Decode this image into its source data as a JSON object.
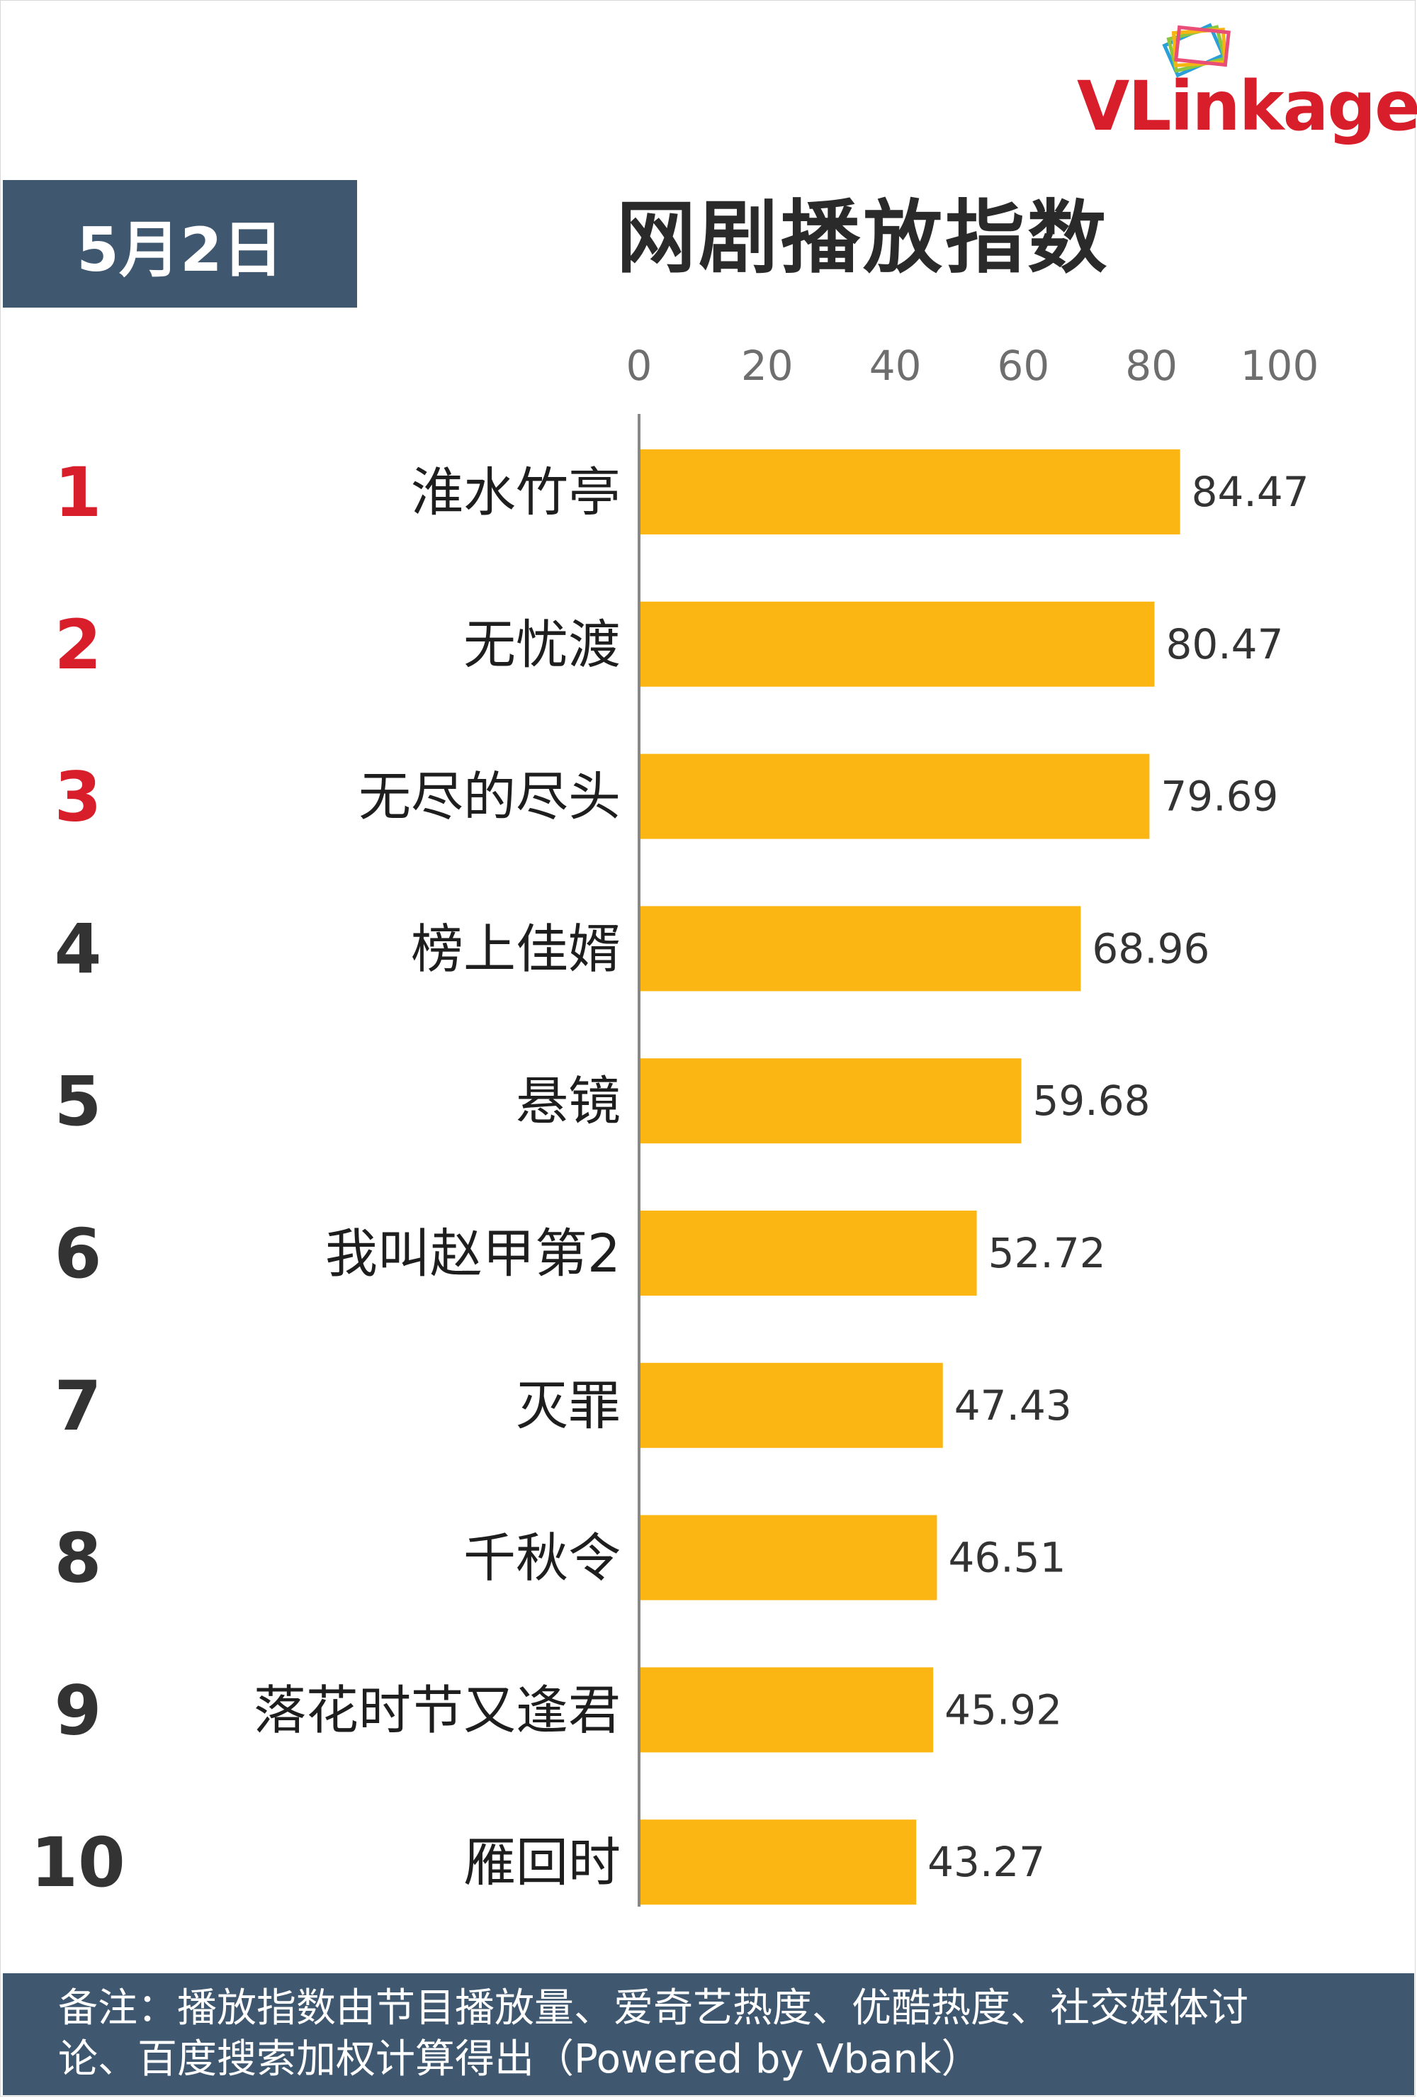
{
  "brand": {
    "name": "VLinkage",
    "logo_icon": "stacked-frames-icon"
  },
  "header": {
    "date": "5月2日",
    "title": "网剧播放指数"
  },
  "chart_data": {
    "type": "bar",
    "orientation": "horizontal",
    "title": "网剧播放指数",
    "xlim": [
      0,
      100
    ],
    "x_ticks": [
      0,
      20,
      40,
      60,
      80,
      100
    ],
    "x_axis_position": "top",
    "grid": false,
    "bar_color": "#FBB614",
    "ranks": [
      "1",
      "2",
      "3",
      "4",
      "5",
      "6",
      "7",
      "8",
      "9",
      "10"
    ],
    "rank_colors": [
      "#D81E2A",
      "#D81E2A",
      "#D81E2A",
      "#333333",
      "#333333",
      "#333333",
      "#333333",
      "#333333",
      "#333333",
      "#333333"
    ],
    "categories": [
      "淮水竹亭",
      "无忧渡",
      "无尽的尽头",
      "榜上佳婿",
      "悬镜",
      "我叫赵甲第2",
      "灭罪",
      "千秋令",
      "落花时节又逢君",
      "雁回时"
    ],
    "values": [
      84.47,
      80.47,
      79.69,
      68.96,
      59.68,
      52.72,
      47.43,
      46.51,
      45.92,
      43.27
    ],
    "value_labels": [
      "84.47",
      "80.47",
      "79.69",
      "68.96",
      "59.68",
      "52.72",
      "47.43",
      "46.51",
      "45.92",
      "43.27"
    ]
  },
  "footer": {
    "note_line1": "备注：播放指数由节目播放量、爱奇艺热度、优酷热度、社交媒体讨",
    "note_line2": "论、百度搜索加权计算得出（Powered by Vbank）"
  }
}
